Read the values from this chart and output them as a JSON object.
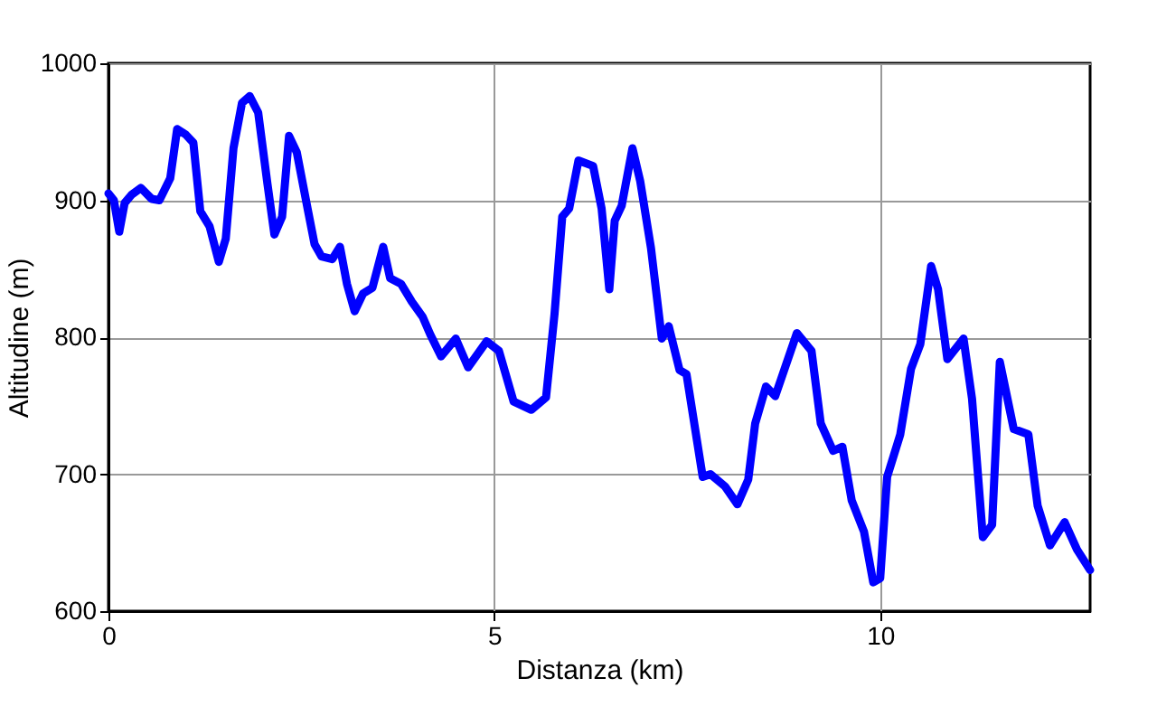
{
  "chart_data": {
    "type": "line",
    "xlabel": "Distanza (km)",
    "ylabel": "Altitudine (m)",
    "xlim": [
      0,
      12.72
    ],
    "ylim": [
      600,
      1000
    ],
    "xticks": [
      0,
      5,
      10
    ],
    "yticks": [
      600,
      700,
      800,
      900,
      1000
    ],
    "grid": true,
    "marker": "none",
    "line_style": "solid",
    "x": [
      0,
      0.07,
      0.14,
      0.21,
      0.3,
      0.42,
      0.56,
      0.66,
      0.8,
      0.89,
      1.0,
      1.1,
      1.19,
      1.31,
      1.43,
      1.52,
      1.62,
      1.73,
      1.83,
      1.94,
      2.06,
      2.15,
      2.25,
      2.34,
      2.44,
      2.58,
      2.67,
      2.76,
      2.9,
      3.0,
      3.09,
      3.19,
      3.3,
      3.42,
      3.56,
      3.65,
      3.79,
      3.93,
      4.07,
      4.17,
      4.31,
      4.5,
      4.66,
      4.9,
      5.06,
      5.25,
      5.48,
      5.67,
      5.78,
      5.88,
      5.97,
      6.09,
      6.28,
      6.39,
      6.49,
      6.56,
      6.65,
      6.79,
      6.89,
      7.03,
      7.17,
      7.26,
      7.4,
      7.49,
      7.7,
      7.8,
      7.99,
      8.15,
      8.29,
      8.38,
      8.52,
      8.64,
      8.92,
      9.11,
      9.23,
      9.39,
      9.51,
      9.63,
      9.79,
      9.91,
      10.0,
      10.09,
      10.26,
      10.4,
      10.52,
      10.66,
      10.75,
      10.87,
      11.08,
      11.19,
      11.33,
      11.45,
      11.55,
      11.73,
      11.92,
      12.04,
      12.2,
      12.39,
      12.55,
      12.72
    ],
    "series": [
      {
        "color": "#0000ff",
        "values": [
          905,
          900,
          877,
          898,
          904,
          909,
          901,
          900,
          916,
          952,
          948,
          942,
          892,
          881,
          855,
          872,
          938,
          971,
          976,
          964,
          912,
          875,
          888,
          947,
          935,
          894,
          868,
          859,
          857,
          866,
          839,
          819,
          832,
          836,
          866,
          843,
          839,
          826,
          815,
          802,
          786,
          799,
          778,
          797,
          790,
          753,
          747,
          756,
          817,
          888,
          894,
          929,
          925,
          894,
          835,
          885,
          896,
          938,
          914,
          865,
          799,
          808,
          776,
          773,
          698,
          700,
          691,
          678,
          696,
          737,
          764,
          757,
          803,
          790,
          737,
          717,
          720,
          681,
          658,
          621,
          624,
          698,
          729,
          777,
          795,
          852,
          835,
          784,
          799,
          755,
          654,
          663,
          782,
          733,
          729,
          677,
          648,
          665,
          645,
          630
        ]
      }
    ]
  }
}
